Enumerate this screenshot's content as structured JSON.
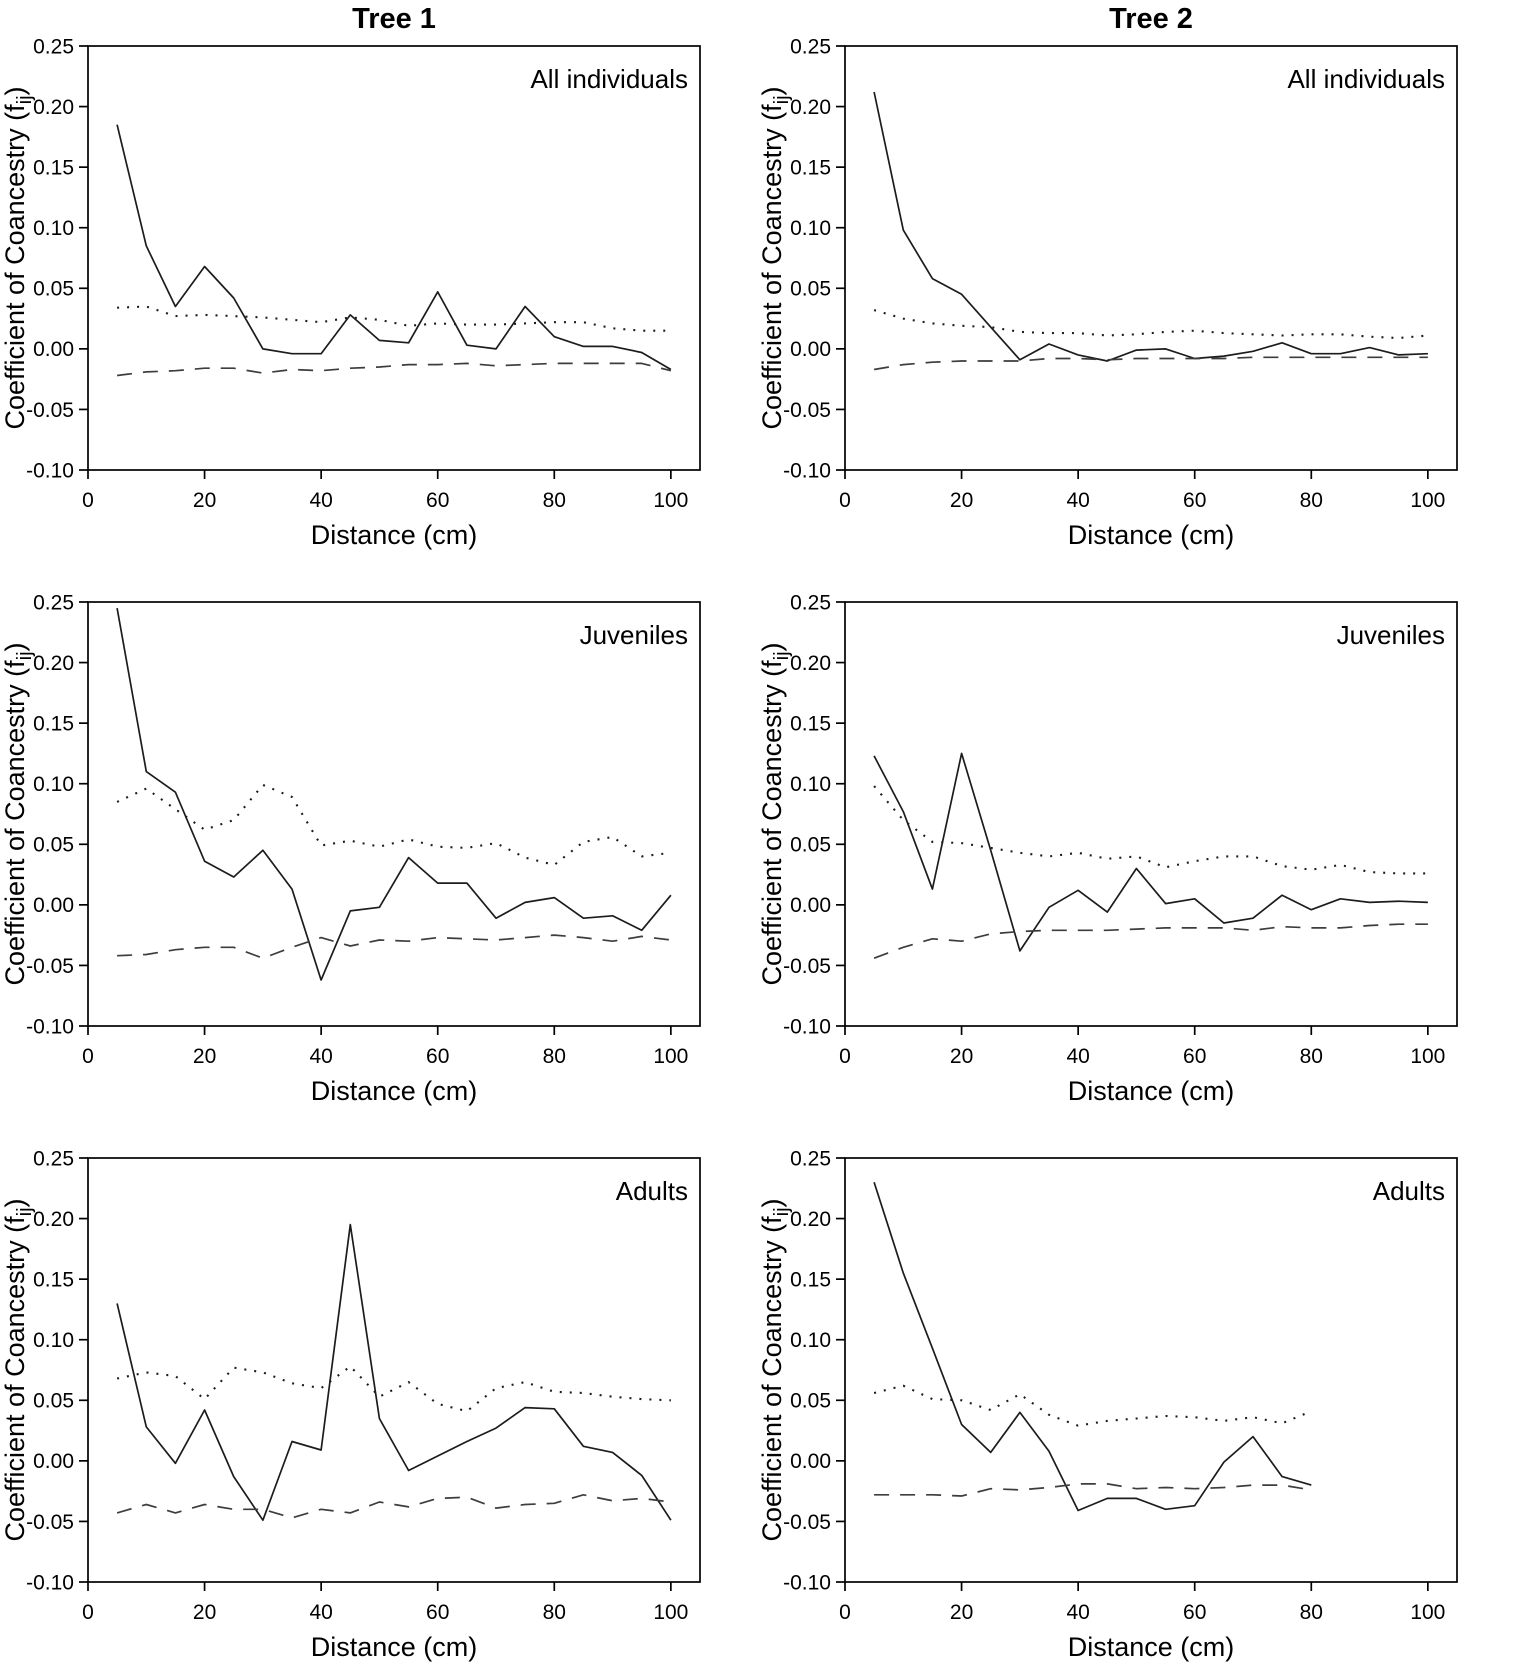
{
  "figure": {
    "xlabel": "Distance (cm)",
    "ylabel": {
      "prefix": "Coefficient of Coancestry (f",
      "subscript": "ij",
      "suffix": ")"
    },
    "colors": {
      "axis": "#000000",
      "solid_line": "#1c1c1c",
      "dotted_line": "#1c1c1c",
      "dashed_line": "#3d3d3d",
      "background": "#ffffff"
    }
  },
  "chart_data": [
    {
      "type": "line",
      "title": "Tree 1",
      "panel_label": "All individuals",
      "xlabel": "Distance (cm)",
      "xlim": [
        0,
        105
      ],
      "ylim": [
        -0.1,
        0.25
      ],
      "xticks": [
        0,
        20,
        40,
        60,
        80,
        100
      ],
      "yticks": [
        0.25,
        0.2,
        0.15,
        0.1,
        0.05,
        0.0,
        -0.05,
        -0.1
      ],
      "grid": false,
      "legend": "none",
      "x": [
        5,
        10,
        15,
        20,
        25,
        30,
        35,
        40,
        45,
        50,
        55,
        60,
        65,
        70,
        75,
        80,
        85,
        90,
        95,
        100
      ],
      "series": [
        {
          "name": "solid line",
          "style": "solid",
          "values": [
            0.185,
            0.085,
            0.035,
            0.068,
            0.042,
            0.0,
            -0.004,
            -0.004,
            0.028,
            0.007,
            0.005,
            0.047,
            0.003,
            0.0,
            0.035,
            0.01,
            0.002,
            0.002,
            -0.003,
            -0.017
          ]
        },
        {
          "name": "dotted line",
          "style": "dotted",
          "values": [
            0.034,
            0.035,
            0.027,
            0.028,
            0.027,
            0.026,
            0.024,
            0.022,
            0.026,
            0.024,
            0.019,
            0.021,
            0.02,
            0.02,
            0.021,
            0.022,
            0.022,
            0.017,
            0.015,
            0.015
          ]
        },
        {
          "name": "dashed line",
          "style": "dashed",
          "values": [
            -0.022,
            -0.019,
            -0.018,
            -0.016,
            -0.016,
            -0.02,
            -0.017,
            -0.018,
            -0.016,
            -0.015,
            -0.013,
            -0.013,
            -0.012,
            -0.014,
            -0.013,
            -0.012,
            -0.012,
            -0.012,
            -0.012,
            -0.018
          ]
        }
      ]
    },
    {
      "type": "line",
      "title": "Tree 2",
      "panel_label": "All individuals",
      "xlabel": "Distance (cm)",
      "xlim": [
        0,
        105
      ],
      "ylim": [
        -0.1,
        0.25
      ],
      "xticks": [
        0,
        20,
        40,
        60,
        80,
        100
      ],
      "yticks": [
        0.25,
        0.2,
        0.15,
        0.1,
        0.05,
        0.0,
        -0.05,
        -0.1
      ],
      "grid": false,
      "legend": "none",
      "x": [
        5,
        10,
        15,
        20,
        25,
        30,
        35,
        40,
        45,
        50,
        55,
        60,
        65,
        70,
        75,
        80,
        85,
        90,
        95,
        100
      ],
      "series": [
        {
          "name": "solid line",
          "style": "solid",
          "values": [
            0.212,
            0.098,
            0.058,
            0.045,
            0.018,
            -0.009,
            0.004,
            -0.005,
            -0.01,
            -0.001,
            0.0,
            -0.008,
            -0.006,
            -0.002,
            0.005,
            -0.004,
            -0.004,
            0.001,
            -0.005,
            -0.004
          ]
        },
        {
          "name": "dotted line",
          "style": "dotted",
          "values": [
            0.032,
            0.025,
            0.021,
            0.019,
            0.018,
            0.014,
            0.013,
            0.013,
            0.011,
            0.012,
            0.014,
            0.015,
            0.013,
            0.012,
            0.011,
            0.012,
            0.012,
            0.01,
            0.009,
            0.011
          ]
        },
        {
          "name": "dashed line",
          "style": "dashed",
          "values": [
            -0.017,
            -0.013,
            -0.011,
            -0.01,
            -0.01,
            -0.01,
            -0.008,
            -0.008,
            -0.009,
            -0.008,
            -0.008,
            -0.008,
            -0.008,
            -0.007,
            -0.007,
            -0.007,
            -0.007,
            -0.007,
            -0.007,
            -0.007
          ]
        }
      ]
    },
    {
      "type": "line",
      "title": "",
      "panel_label": "Juveniles",
      "xlabel": "Distance (cm)",
      "xlim": [
        0,
        105
      ],
      "ylim": [
        -0.1,
        0.25
      ],
      "xticks": [
        0,
        20,
        40,
        60,
        80,
        100
      ],
      "yticks": [
        0.25,
        0.2,
        0.15,
        0.1,
        0.05,
        0.0,
        -0.05,
        -0.1
      ],
      "grid": false,
      "legend": "none",
      "x": [
        5,
        10,
        15,
        20,
        25,
        30,
        35,
        40,
        45,
        50,
        55,
        60,
        65,
        70,
        75,
        80,
        85,
        90,
        95,
        100
      ],
      "series": [
        {
          "name": "solid line",
          "style": "solid",
          "values": [
            0.245,
            0.11,
            0.093,
            0.036,
            0.023,
            0.045,
            0.013,
            -0.062,
            -0.005,
            -0.002,
            0.039,
            0.018,
            0.018,
            -0.011,
            0.002,
            0.006,
            -0.011,
            -0.009,
            -0.021,
            0.008
          ]
        },
        {
          "name": "dotted line",
          "style": "dotted",
          "values": [
            0.085,
            0.096,
            0.079,
            0.062,
            0.07,
            0.099,
            0.089,
            0.049,
            0.053,
            0.048,
            0.054,
            0.048,
            0.047,
            0.051,
            0.039,
            0.033,
            0.052,
            0.056,
            0.04,
            0.043
          ]
        },
        {
          "name": "dashed line",
          "style": "dashed",
          "values": [
            -0.042,
            -0.041,
            -0.037,
            -0.035,
            -0.035,
            -0.044,
            -0.035,
            -0.027,
            -0.034,
            -0.029,
            -0.03,
            -0.027,
            -0.028,
            -0.029,
            -0.027,
            -0.025,
            -0.027,
            -0.03,
            -0.026,
            -0.029
          ]
        }
      ]
    },
    {
      "type": "line",
      "title": "",
      "panel_label": "Juveniles",
      "xlabel": "Distance (cm)",
      "xlim": [
        0,
        105
      ],
      "ylim": [
        -0.1,
        0.25
      ],
      "xticks": [
        0,
        20,
        40,
        60,
        80,
        100
      ],
      "yticks": [
        0.25,
        0.2,
        0.15,
        0.1,
        0.05,
        0.0,
        -0.05,
        -0.1
      ],
      "grid": false,
      "legend": "none",
      "x": [
        5,
        10,
        15,
        20,
        25,
        30,
        35,
        40,
        45,
        50,
        55,
        60,
        65,
        70,
        75,
        80,
        85,
        90,
        95,
        100
      ],
      "series": [
        {
          "name": "solid line",
          "style": "solid",
          "values": [
            0.123,
            0.077,
            0.013,
            0.125,
            0.045,
            -0.038,
            -0.002,
            0.012,
            -0.006,
            0.03,
            0.001,
            0.005,
            -0.015,
            -0.011,
            0.008,
            -0.004,
            0.005,
            0.002,
            0.003,
            0.002
          ]
        },
        {
          "name": "dotted line",
          "style": "dotted",
          "values": [
            0.098,
            0.07,
            0.052,
            0.051,
            0.047,
            0.043,
            0.04,
            0.043,
            0.038,
            0.04,
            0.031,
            0.036,
            0.04,
            0.04,
            0.032,
            0.029,
            0.033,
            0.027,
            0.026,
            0.026
          ]
        },
        {
          "name": "dashed line",
          "style": "dashed",
          "values": [
            -0.044,
            -0.035,
            -0.028,
            -0.03,
            -0.024,
            -0.022,
            -0.021,
            -0.021,
            -0.021,
            -0.02,
            -0.019,
            -0.019,
            -0.019,
            -0.021,
            -0.018,
            -0.019,
            -0.019,
            -0.017,
            -0.016,
            -0.016
          ]
        }
      ]
    },
    {
      "type": "line",
      "title": "",
      "panel_label": "Adults",
      "xlabel": "Distance (cm)",
      "xlim": [
        0,
        105
      ],
      "ylim": [
        -0.1,
        0.25
      ],
      "xticks": [
        0,
        20,
        40,
        60,
        80,
        100
      ],
      "yticks": [
        0.25,
        0.2,
        0.15,
        0.1,
        0.05,
        0.0,
        -0.05,
        -0.1
      ],
      "grid": false,
      "legend": "none",
      "x": [
        5,
        10,
        15,
        20,
        25,
        30,
        35,
        40,
        45,
        50,
        55,
        60,
        65,
        70,
        75,
        80,
        85,
        90,
        95,
        100
      ],
      "series": [
        {
          "name": "solid line",
          "style": "solid",
          "values": [
            0.13,
            0.028,
            -0.002,
            0.042,
            -0.013,
            -0.049,
            0.016,
            0.009,
            0.195,
            0.035,
            -0.008,
            0.004,
            0.016,
            0.027,
            0.044,
            0.043,
            0.012,
            0.007,
            -0.012,
            -0.049
          ]
        },
        {
          "name": "dotted line",
          "style": "dotted",
          "values": [
            0.068,
            0.073,
            0.07,
            0.051,
            0.077,
            0.073,
            0.064,
            0.06,
            0.078,
            0.053,
            0.065,
            0.047,
            0.041,
            0.06,
            0.065,
            0.057,
            0.056,
            0.053,
            0.051,
            0.05
          ]
        },
        {
          "name": "dashed line",
          "style": "dashed",
          "values": [
            -0.043,
            -0.036,
            -0.043,
            -0.036,
            -0.04,
            -0.04,
            -0.047,
            -0.04,
            -0.043,
            -0.034,
            -0.038,
            -0.031,
            -0.03,
            -0.039,
            -0.036,
            -0.035,
            -0.028,
            -0.033,
            -0.031,
            -0.034
          ]
        }
      ]
    },
    {
      "type": "line",
      "title": "",
      "panel_label": "Adults",
      "xlabel": "Distance (cm)",
      "xlim": [
        0,
        105
      ],
      "ylim": [
        -0.1,
        0.25
      ],
      "xticks": [
        0,
        20,
        40,
        60,
        80,
        100
      ],
      "yticks": [
        0.25,
        0.2,
        0.15,
        0.1,
        0.05,
        0.0,
        -0.05,
        -0.1
      ],
      "grid": false,
      "legend": "none",
      "x": [
        5,
        10,
        15,
        20,
        25,
        30,
        35,
        40,
        45,
        50,
        55,
        60,
        65,
        70,
        75,
        80
      ],
      "series": [
        {
          "name": "solid line",
          "style": "solid",
          "values": [
            0.23,
            0.155,
            0.093,
            0.03,
            0.007,
            0.04,
            0.008,
            -0.041,
            -0.031,
            -0.031,
            -0.04,
            -0.037,
            -0.001,
            0.02,
            -0.013,
            -0.02
          ]
        },
        {
          "name": "dotted line",
          "style": "dotted",
          "values": [
            0.056,
            0.062,
            0.051,
            0.05,
            0.042,
            0.055,
            0.038,
            0.029,
            0.033,
            0.035,
            0.037,
            0.036,
            0.033,
            0.036,
            0.031,
            0.041
          ]
        },
        {
          "name": "dashed line",
          "style": "dashed",
          "values": [
            -0.028,
            -0.028,
            -0.028,
            -0.029,
            -0.023,
            -0.024,
            -0.022,
            -0.019,
            -0.019,
            -0.023,
            -0.022,
            -0.023,
            -0.022,
            -0.02,
            -0.02,
            -0.024
          ]
        }
      ]
    }
  ]
}
